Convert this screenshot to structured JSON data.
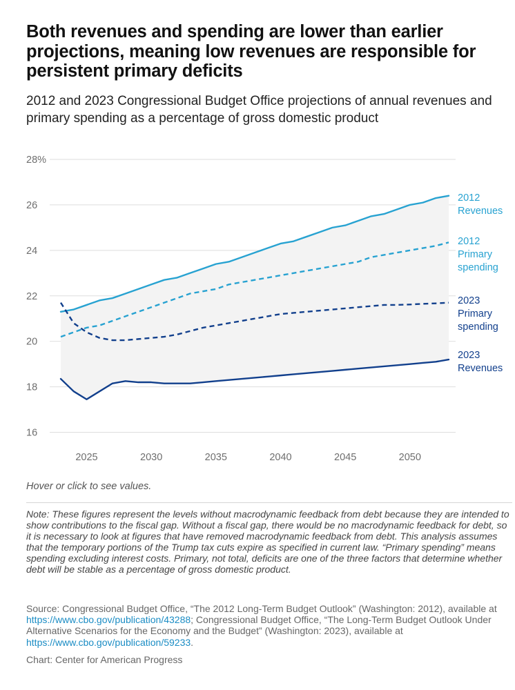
{
  "header": {
    "title": "Both revenues and spending are lower than earlier projections, meaning low revenues are responsible for persistent primary deficits",
    "subtitle": "2012 and 2023 Congressional Budget Office projections of annual revenues and primary spending as a percentage of gross domestic product"
  },
  "chart_data": {
    "type": "line",
    "title": "",
    "xlabel": "",
    "ylabel": "",
    "xlim": [
      2023,
      2053
    ],
    "ylim": [
      15.5,
      28
    ],
    "y_ticks": [
      16,
      18,
      20,
      22,
      24,
      26,
      28
    ],
    "y_tick_labels": [
      "16",
      "18",
      "20",
      "22",
      "24",
      "26",
      "28%"
    ],
    "x_ticks": [
      2025,
      2030,
      2035,
      2040,
      2045,
      2050
    ],
    "x_tick_labels": [
      "2025",
      "2030",
      "2035",
      "2040",
      "2045",
      "2050"
    ],
    "grid": true,
    "shaded_gap": "between 2012 Revenues and 2023 Revenues",
    "x": [
      2023,
      2024,
      2025,
      2026,
      2027,
      2028,
      2029,
      2030,
      2031,
      2032,
      2033,
      2034,
      2035,
      2036,
      2037,
      2038,
      2039,
      2040,
      2041,
      2042,
      2043,
      2044,
      2045,
      2046,
      2047,
      2048,
      2049,
      2050,
      2051,
      2052,
      2053
    ],
    "series": [
      {
        "name": "2012 Revenues",
        "label_lines": [
          "2012",
          "Revenues"
        ],
        "color": "#27a2d1",
        "dash": "solid",
        "values": [
          21.3,
          21.4,
          21.6,
          21.8,
          21.9,
          22.1,
          22.3,
          22.5,
          22.7,
          22.8,
          23.0,
          23.2,
          23.4,
          23.5,
          23.7,
          23.9,
          24.1,
          24.3,
          24.4,
          24.6,
          24.8,
          25.0,
          25.1,
          25.3,
          25.5,
          25.6,
          25.8,
          26.0,
          26.1,
          26.3,
          26.4
        ]
      },
      {
        "name": "2012 Primary spending",
        "label_lines": [
          "2012",
          "Primary",
          "spending"
        ],
        "color": "#27a2d1",
        "dash": "dashed",
        "values": [
          20.2,
          20.4,
          20.6,
          20.7,
          20.9,
          21.1,
          21.3,
          21.5,
          21.7,
          21.9,
          22.1,
          22.2,
          22.3,
          22.5,
          22.6,
          22.7,
          22.8,
          22.9,
          23.0,
          23.1,
          23.2,
          23.3,
          23.4,
          23.5,
          23.7,
          23.8,
          23.9,
          24.0,
          24.1,
          24.2,
          24.35
        ]
      },
      {
        "name": "2023 Primary spending",
        "label_lines": [
          "2023",
          "Primary",
          "spending"
        ],
        "color": "#113f8c",
        "dash": "dashed",
        "values": [
          21.7,
          20.8,
          20.4,
          20.15,
          20.05,
          20.05,
          20.1,
          20.15,
          20.2,
          20.3,
          20.45,
          20.6,
          20.7,
          20.8,
          20.9,
          21.0,
          21.1,
          21.2,
          21.25,
          21.3,
          21.35,
          21.4,
          21.45,
          21.5,
          21.55,
          21.6,
          21.6,
          21.62,
          21.65,
          21.67,
          21.7
        ]
      },
      {
        "name": "2023 Revenues",
        "label_lines": [
          "2023",
          "Revenues"
        ],
        "color": "#113f8c",
        "dash": "solid",
        "values": [
          18.35,
          17.8,
          17.45,
          17.8,
          18.15,
          18.25,
          18.2,
          18.2,
          18.15,
          18.15,
          18.15,
          18.2,
          18.25,
          18.3,
          18.35,
          18.4,
          18.45,
          18.5,
          18.55,
          18.6,
          18.65,
          18.7,
          18.75,
          18.8,
          18.85,
          18.9,
          18.95,
          19.0,
          19.05,
          19.1,
          19.2
        ]
      }
    ]
  },
  "footer": {
    "hover_hint": "Hover or click to see values.",
    "note": "Note: These figures represent the levels without macrodynamic feedback from debt because they are intended to show contributions to the fiscal gap. Without a fiscal gap, there would be no macrodynamic feedback for debt, so it is necessary to look at figures that have removed macrodynamic feedback from debt. This analysis assumes that the temporary portions of the Trump tax cuts expire as specified in current law. “Primary spending” means spending excluding interest costs. Primary, not total, deficits are one of the three factors that determine whether debt will be stable as a percentage of gross domestic product.",
    "source_part1": "Source: Congressional Budget Office, “The 2012 Long-Term Budget Outlook” (Washington: 2012), available at ",
    "source_link1": "https://www.cbo.gov/publication/43288",
    "source_part2": "; Congressional Budget Office, “The Long-Term Budget Outlook Under Alternative Scenarios for the Economy and the Budget” (Washington: 2023), available at ",
    "source_link2": "https://www.cbo.gov/publication/59233",
    "source_part3": ".",
    "credit": "Chart: Center for American Progress",
    "link_color": "#1a8cc4"
  }
}
